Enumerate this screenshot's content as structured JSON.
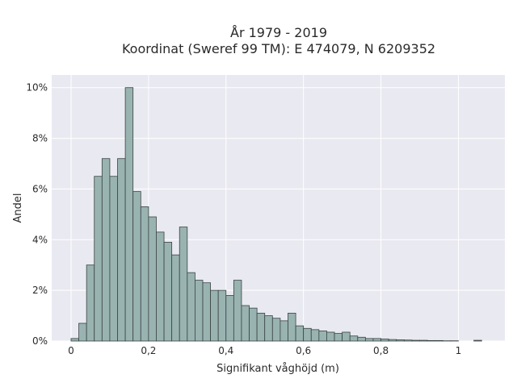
{
  "chart_data": {
    "type": "bar",
    "title_lines": [
      "År 1979 - 2019",
      "Koordinat (Sweref 99 TM): E 474079, N 6209352"
    ],
    "xlabel": "Signifikant våghöjd (m)",
    "ylabel": "Andel",
    "xlim": [
      -0.05,
      1.12
    ],
    "ylim": [
      0,
      10.5
    ],
    "x_ticks": [
      0,
      0.2,
      0.4,
      0.6,
      0.8,
      1
    ],
    "x_tick_labels": [
      "0",
      "0,2",
      "0,4",
      "0,6",
      "0,8",
      "1"
    ],
    "y_ticks": [
      0,
      2,
      4,
      6,
      8,
      10
    ],
    "y_tick_labels": [
      "0%",
      "2%",
      "4%",
      "6%",
      "8%",
      "10%"
    ],
    "bin_width": 0.02,
    "bin_starts": [
      0.0,
      0.02,
      0.04,
      0.06,
      0.08,
      0.1,
      0.12,
      0.14,
      0.16,
      0.18,
      0.2,
      0.22,
      0.24,
      0.26,
      0.28,
      0.3,
      0.32,
      0.34,
      0.36,
      0.38,
      0.4,
      0.42,
      0.44,
      0.46,
      0.48,
      0.5,
      0.52,
      0.54,
      0.56,
      0.58,
      0.6,
      0.62,
      0.64,
      0.66,
      0.68,
      0.7,
      0.72,
      0.74,
      0.76,
      0.78,
      0.8,
      0.82,
      0.84,
      0.86,
      0.88,
      0.9,
      0.92,
      0.94,
      0.96,
      0.98,
      1.0,
      1.02,
      1.04
    ],
    "values": [
      0.1,
      0.7,
      3.0,
      6.5,
      7.2,
      6.5,
      7.2,
      10.0,
      5.9,
      5.3,
      4.9,
      4.3,
      3.9,
      3.4,
      4.5,
      2.7,
      2.4,
      2.3,
      2.0,
      2.0,
      1.8,
      2.4,
      1.4,
      1.3,
      1.1,
      1.0,
      0.9,
      0.8,
      1.1,
      0.6,
      0.5,
      0.45,
      0.4,
      0.35,
      0.3,
      0.35,
      0.2,
      0.15,
      0.1,
      0.1,
      0.08,
      0.06,
      0.05,
      0.04,
      0.03,
      0.03,
      0.02,
      0.02,
      0.01,
      0.01,
      0.0,
      0.0,
      0.03
    ],
    "grid": true,
    "legend": "none",
    "colors": {
      "bar_fill": "#99b3b1",
      "bar_stroke": "#3a4443",
      "plot_bg": "#e9e9f1",
      "grid": "#ffffff",
      "text": "#2a2a2a"
    }
  }
}
